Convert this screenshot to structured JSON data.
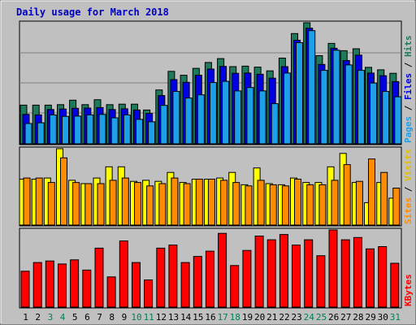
{
  "chart_data": {
    "type": "bar",
    "title": "Daily usage for March 2018",
    "categories": [
      "1",
      "2",
      "3",
      "4",
      "5",
      "6",
      "7",
      "8",
      "9",
      "10",
      "11",
      "12",
      "13",
      "14",
      "15",
      "16",
      "17",
      "18",
      "19",
      "20",
      "21",
      "22",
      "23",
      "24",
      "25",
      "26",
      "27",
      "28",
      "29",
      "30",
      "31"
    ],
    "weekend_days": [
      "3",
      "4",
      "10",
      "11",
      "17",
      "18",
      "24",
      "25",
      "31"
    ],
    "panels": [
      {
        "id": "hits",
        "max_label": "4942",
        "ymax": 4942,
        "legend": [
          "Pages",
          "Files",
          "Hits"
        ],
        "series": [
          {
            "name": "Hits",
            "color": "#1e7a5a",
            "values": [
              1580,
              1580,
              1580,
              1600,
              1780,
              1600,
              1800,
              1600,
              1620,
              1620,
              1380,
              2200,
              2960,
              2800,
              3080,
              3320,
              3480,
              3150,
              3170,
              3130,
              2980,
              3500,
              4500,
              4942,
              3600,
              4100,
              3800,
              3880,
              3120,
              3020,
              2880
            ]
          },
          {
            "name": "Files",
            "color": "#0000e0",
            "values": [
              1200,
              1180,
              1400,
              1420,
              1450,
              1460,
              1480,
              1400,
              1430,
              1380,
              1240,
              1970,
              2620,
              2510,
              2800,
              3050,
              3160,
              2880,
              2890,
              2840,
              2680,
              3150,
              4230,
              4720,
              3240,
              3900,
              3400,
              3620,
              2890,
              2780,
              2540
            ]
          },
          {
            "name": "Pages",
            "color": "#1ea0e8",
            "values": [
              830,
              860,
              1180,
              1120,
              1130,
              1180,
              1200,
              1060,
              1180,
              1000,
              900,
              1570,
              2140,
              1870,
              2000,
              2500,
              2550,
              2160,
              2300,
              2160,
              1640,
              2890,
              4130,
              4620,
              3000,
              3820,
              3220,
              3000,
              2480,
              2140,
              1920
            ]
          }
        ]
      },
      {
        "id": "visits",
        "max_label": "341",
        "ymax": 341,
        "legend": [
          "Sites",
          "Visits"
        ],
        "series": [
          {
            "name": "Visits",
            "color": "#ffff00",
            "values": [
              205,
              205,
              210,
              341,
              200,
              185,
              210,
              260,
              260,
              195,
              200,
              195,
              235,
              190,
              205,
              205,
              210,
              235,
              180,
              255,
              185,
              180,
              210,
              190,
              190,
              260,
              320,
              190,
              100,
              190,
              120
            ]
          },
          {
            "name": "Sites",
            "color": "#ff8c00",
            "values": [
              210,
              210,
              190,
              300,
              190,
              185,
              185,
              200,
              210,
              190,
              175,
              185,
              210,
              185,
              205,
              205,
              200,
              190,
              175,
              200,
              180,
              175,
              205,
              180,
              180,
              200,
              270,
              195,
              295,
              235,
              165
            ]
          }
        ]
      },
      {
        "id": "kbytes",
        "max_label": "204060",
        "ymax": 204060,
        "legend": [
          "KBytes"
        ],
        "series": [
          {
            "name": "KBytes",
            "color": "#ff0000",
            "values": [
              95000,
              118000,
              122000,
              114000,
              125000,
              98000,
              156000,
              80000,
              175000,
              118000,
              72000,
              156000,
              164000,
              118000,
              134000,
              148000,
              195000,
              110000,
              150000,
              188000,
              178000,
              192000,
              164000,
              178000,
              136000,
              204060,
              178000,
              184000,
              154000,
              160000,
              116000
            ]
          }
        ]
      }
    ],
    "legend_colors": {
      "Pages": "#1ea0e8",
      "Files": "#0000e0",
      "Hits": "#1e7a5a",
      "Sites": "#ff8c00",
      "Visits": "#e0c000",
      "KBytes": "#ff0000",
      "separator": "#000000"
    }
  }
}
